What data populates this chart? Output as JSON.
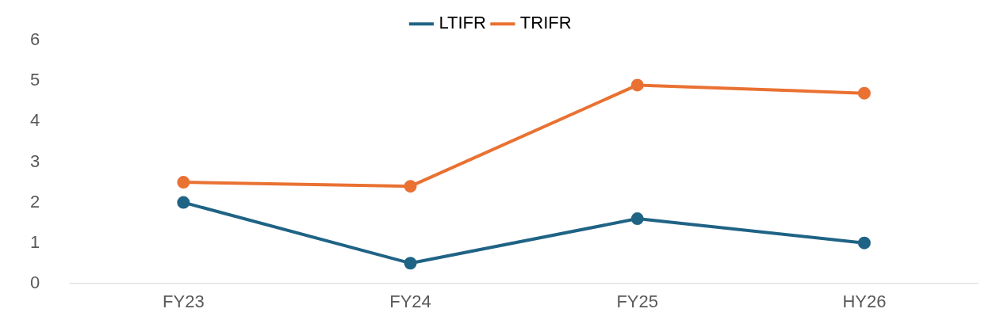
{
  "chart_data": {
    "type": "line",
    "categories": [
      "FY23",
      "FY24",
      "FY25",
      "HY26"
    ],
    "series": [
      {
        "name": "LTIFR",
        "color": "#1f6385",
        "values": [
          2.0,
          0.5,
          1.6,
          1.0
        ]
      },
      {
        "name": "TRIFR",
        "color": "#e97132",
        "values": [
          2.5,
          2.4,
          4.9,
          4.7
        ]
      }
    ],
    "ylim": [
      0,
      6
    ],
    "yticks": [
      0,
      1,
      2,
      3,
      4,
      5,
      6
    ],
    "grid": false,
    "legend": "top",
    "marker": "circle",
    "line_style": "solid"
  }
}
